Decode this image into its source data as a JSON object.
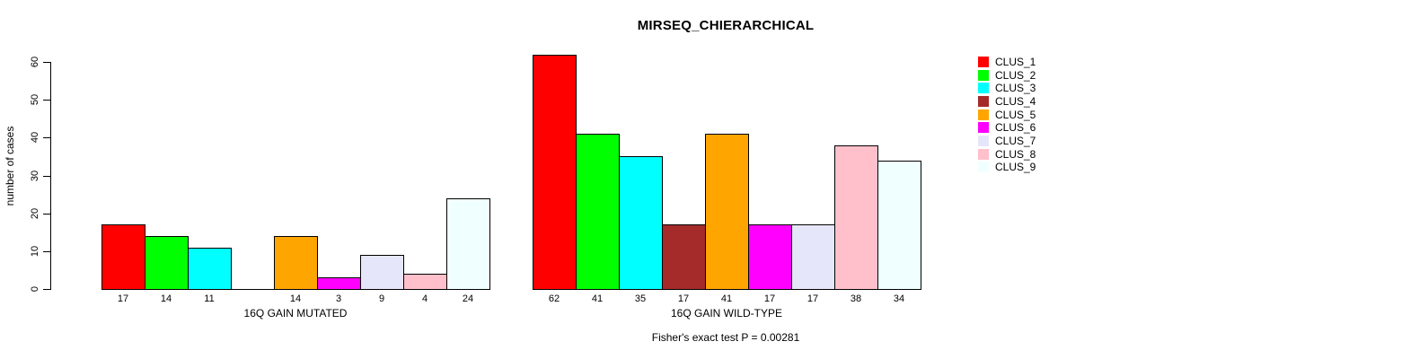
{
  "chart_data": {
    "type": "bar",
    "title": "MIRSEQ_CHIERARCHICAL",
    "ylabel": "number of cases",
    "footer": "Fisher's exact test P = 0.00281",
    "ylim": [
      0,
      60
    ],
    "yticks": [
      0,
      10,
      20,
      30,
      40,
      50,
      60
    ],
    "grid": false,
    "legend_position": "top-right",
    "bar_value_labels": true,
    "zero_bars_hidden": true,
    "categories": [
      "16Q GAIN MUTATED",
      "16Q GAIN WILD-TYPE"
    ],
    "series": [
      {
        "name": "CLUS_1",
        "color": "#FF0000",
        "values": [
          17,
          62
        ]
      },
      {
        "name": "CLUS_2",
        "color": "#00FF00",
        "values": [
          14,
          41
        ]
      },
      {
        "name": "CLUS_3",
        "color": "#00FFFF",
        "values": [
          11,
          35
        ]
      },
      {
        "name": "CLUS_4",
        "color": "#A52A2A",
        "values": [
          0,
          17
        ]
      },
      {
        "name": "CLUS_5",
        "color": "#FFA500",
        "values": [
          14,
          41
        ]
      },
      {
        "name": "CLUS_6",
        "color": "#FF00FF",
        "values": [
          3,
          17
        ]
      },
      {
        "name": "CLUS_7",
        "color": "#E6E6FA",
        "values": [
          9,
          17
        ]
      },
      {
        "name": "CLUS_8",
        "color": "#FFC0CB",
        "values": [
          4,
          38
        ]
      },
      {
        "name": "CLUS_9",
        "color": "#F0FFFF",
        "values": [
          24,
          34
        ]
      }
    ],
    "axis_color": "#000000",
    "background_color": "#FFFFFF"
  }
}
